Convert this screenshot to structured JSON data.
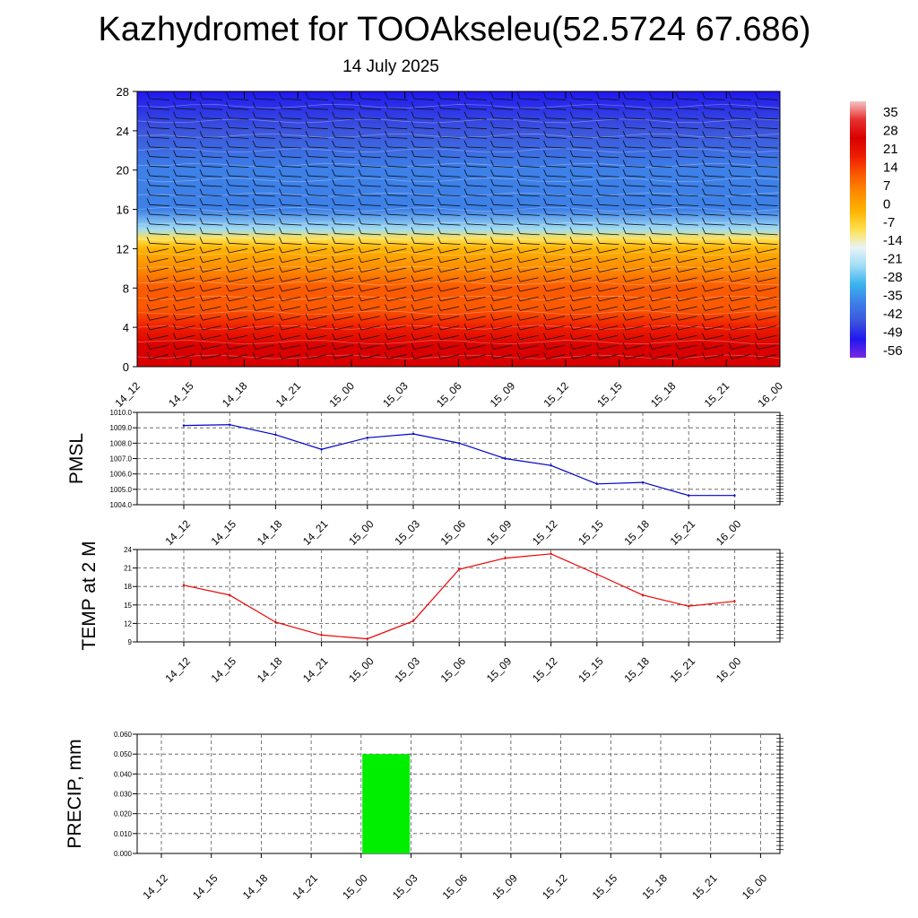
{
  "title": "Kazhydromet for TOOAkseleu(52.5724 67.686)",
  "subtitle": "14 July 2025",
  "time_labels": [
    "14_12",
    "14_15",
    "14_18",
    "14_21",
    "15_00",
    "15_03",
    "15_06",
    "15_09",
    "15_12",
    "15_15",
    "15_18",
    "15_21",
    "16_00"
  ],
  "colorbar": {
    "labels": [
      "35",
      "28",
      "21",
      "14",
      "7",
      "0",
      "-7",
      "-14",
      "-21",
      "-28",
      "-35",
      "-42",
      "-49",
      "-56"
    ],
    "colors": [
      "#f4c3c3",
      "#e83030",
      "#d80000",
      "#ee1d00",
      "#fb5a00",
      "#fd8c00",
      "#feb300",
      "#ffe050",
      "#e8f4f8",
      "#9fdcf4",
      "#3ab2ee",
      "#3d80e8",
      "#3c55dc",
      "#2018f0",
      "#7a28e0"
    ]
  },
  "chart_data": [
    {
      "type": "heatmap",
      "title": "Kazhydromet for TOOAkseleu(52.5724 67.686)",
      "subtitle": "14 July 2025",
      "x": [
        "14_12",
        "14_15",
        "14_18",
        "14_21",
        "15_00",
        "15_03",
        "15_06",
        "15_09",
        "15_12",
        "15_15",
        "15_18",
        "15_21",
        "16_00"
      ],
      "y_ticks": [
        0,
        4,
        8,
        12,
        16,
        20,
        24,
        28
      ],
      "ylim": [
        0,
        28
      ],
      "colorbar_ticks": [
        35,
        28,
        21,
        14,
        7,
        0,
        -7,
        -14,
        -21,
        -28,
        -35,
        -42,
        -49,
        -56
      ],
      "temperature_profile": [
        {
          "level": 0,
          "value": 22
        },
        {
          "level": 2,
          "value": 18
        },
        {
          "level": 4,
          "value": 14
        },
        {
          "level": 6,
          "value": 9
        },
        {
          "level": 8,
          "value": 5
        },
        {
          "level": 10,
          "value": 0
        },
        {
          "level": 12,
          "value": -7
        },
        {
          "level": 13,
          "value": -14
        },
        {
          "level": 14,
          "value": -25
        },
        {
          "level": 16,
          "value": -40
        },
        {
          "level": 20,
          "value": -45
        },
        {
          "level": 24,
          "value": -50
        },
        {
          "level": 28,
          "value": -58
        }
      ],
      "overlay": "wind barbs"
    },
    {
      "type": "line",
      "ylabel": "PMSL",
      "x": [
        "14_12",
        "14_15",
        "14_18",
        "14_21",
        "15_00",
        "15_03",
        "15_06",
        "15_09",
        "15_12",
        "15_15",
        "15_18",
        "15_21",
        "16_00"
      ],
      "y_ticks": [
        "1004.0",
        "1005.0",
        "1006.0",
        "1007.0",
        "1008.0",
        "1009.0",
        "1010.0"
      ],
      "ylim": [
        1004,
        1010
      ],
      "grid": true,
      "series": [
        {
          "values": [
            1009.15,
            1009.2,
            1008.55,
            1007.6,
            1008.35,
            1008.6,
            1008.0,
            1007.0,
            1006.55,
            1005.35,
            1005.45,
            1004.6,
            1004.6
          ],
          "color": "#0000cc"
        }
      ]
    },
    {
      "type": "line",
      "ylabel": "TEMP at 2 M",
      "x": [
        "14_12",
        "14_15",
        "14_18",
        "14_21",
        "15_00",
        "15_03",
        "15_06",
        "15_09",
        "15_12",
        "15_15",
        "15_18",
        "15_21",
        "16_00"
      ],
      "y_ticks": [
        "9",
        "12",
        "15",
        "18",
        "21",
        "24"
      ],
      "ylim": [
        9,
        24
      ],
      "grid": true,
      "series": [
        {
          "values": [
            18.2,
            16.6,
            12.2,
            10.1,
            9.5,
            12.4,
            20.8,
            22.6,
            23.3,
            20.0,
            16.6,
            14.8,
            15.6
          ],
          "color": "#ee0000"
        }
      ]
    },
    {
      "type": "bar",
      "ylabel": "PRECIP, mm",
      "categories": [
        "14_12",
        "14_15",
        "14_18",
        "14_21",
        "15_00",
        "15_03",
        "15_06",
        "15_09",
        "15_12",
        "15_15",
        "15_18",
        "15_21",
        "16_00"
      ],
      "y_ticks": [
        "0.000",
        "0.010",
        "0.020",
        "0.030",
        "0.040",
        "0.050",
        "0.060"
      ],
      "ylim": [
        0,
        0.06
      ],
      "grid": true,
      "values": [
        0,
        0,
        0,
        0,
        0,
        0.05,
        0,
        0,
        0,
        0,
        0,
        0,
        0
      ],
      "color": "#00ee00"
    }
  ]
}
